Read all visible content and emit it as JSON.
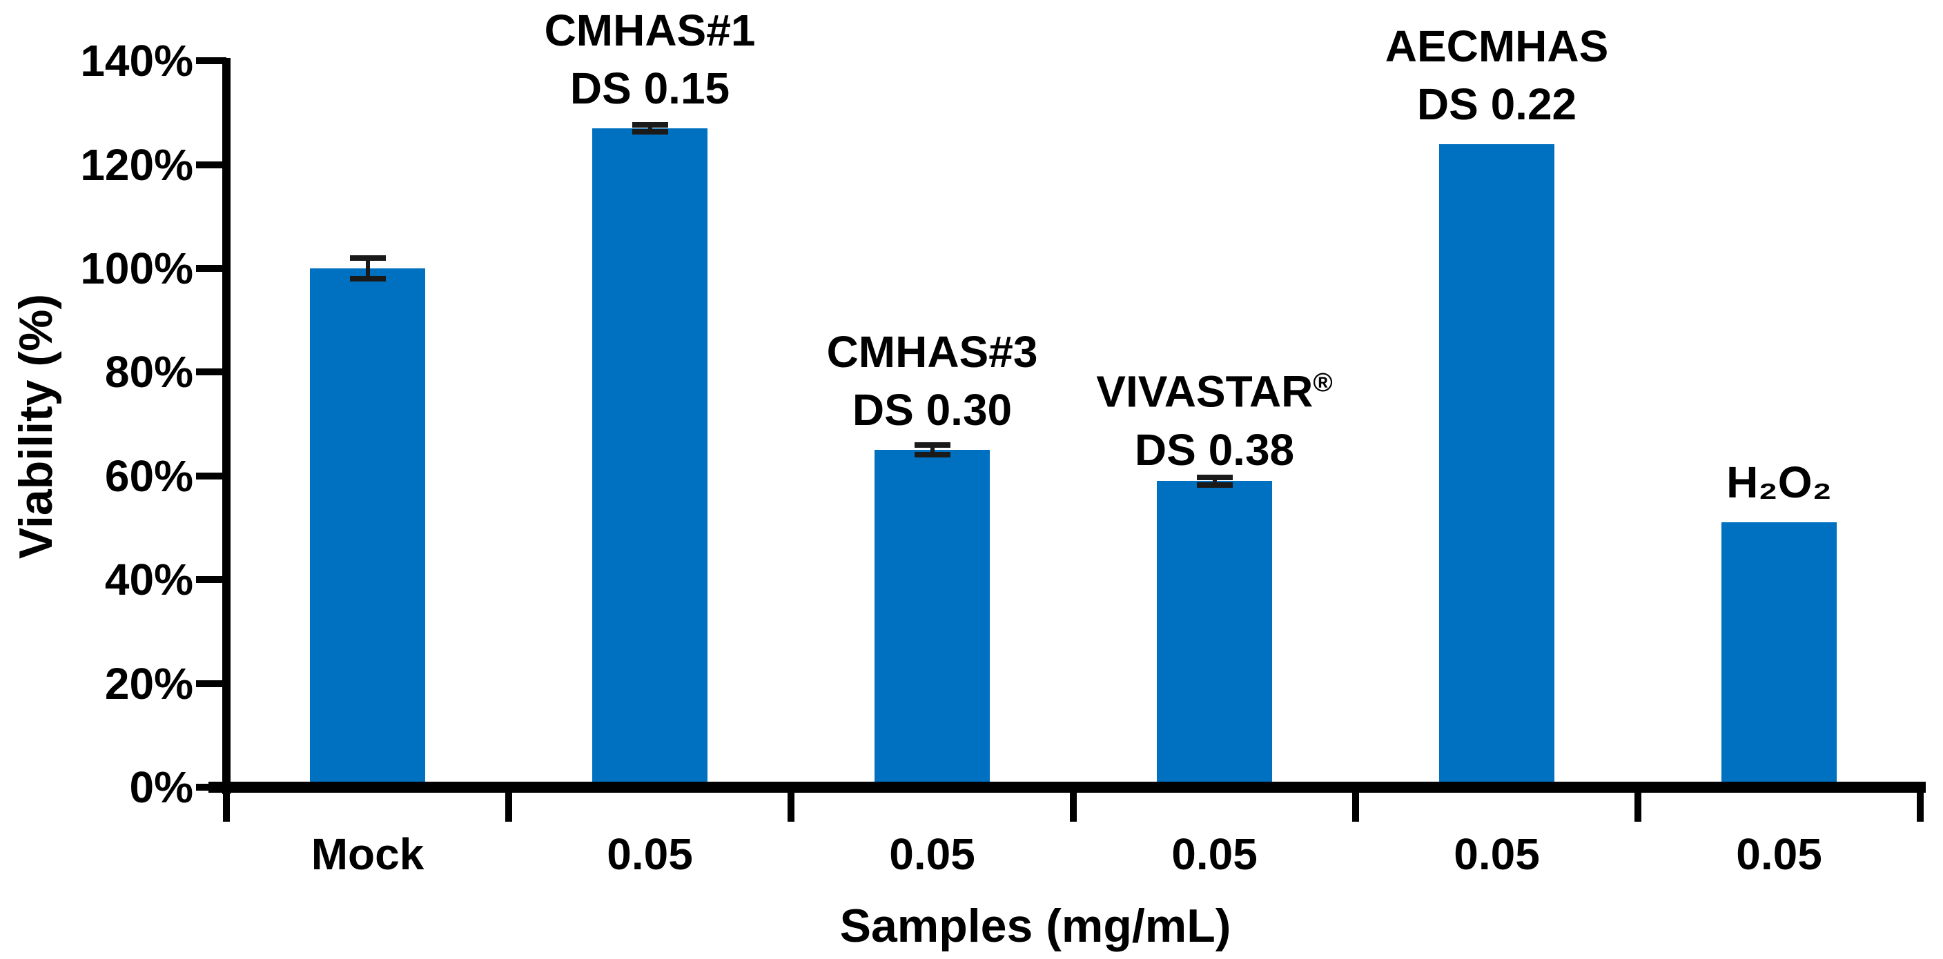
{
  "chart_data": {
    "type": "bar",
    "title": "",
    "xlabel": "Samples (mg/mL)",
    "ylabel": "Viability (%)",
    "categories": [
      "Mock",
      "0.05",
      "0.05",
      "0.05",
      "0.05",
      "0.05"
    ],
    "values": [
      100,
      127,
      65,
      59,
      124,
      51
    ],
    "error_bars": [
      2,
      0.7,
      0.9,
      0.7,
      0,
      0
    ],
    "bar_annotations": [
      [],
      [
        "CMHAS#1",
        "DS 0.15"
      ],
      [
        "CMHAS#3",
        "DS 0.30"
      ],
      [
        "VIVASTAR®",
        "DS 0.38"
      ],
      [
        "AECMHAS",
        "DS 0.22"
      ],
      [
        "H₂O₂"
      ]
    ],
    "ylim": [
      0,
      140
    ],
    "yticks": [
      0,
      20,
      40,
      60,
      80,
      100,
      120,
      140
    ],
    "ytick_labels": [
      "0%",
      "20%",
      "40%",
      "60%",
      "80%",
      "100%",
      "120%",
      "140%"
    ],
    "grid": false,
    "legend": null,
    "bar_color": "#0071C1",
    "error_bar_color": "#1a1a1a",
    "axis_color": "#000000"
  }
}
